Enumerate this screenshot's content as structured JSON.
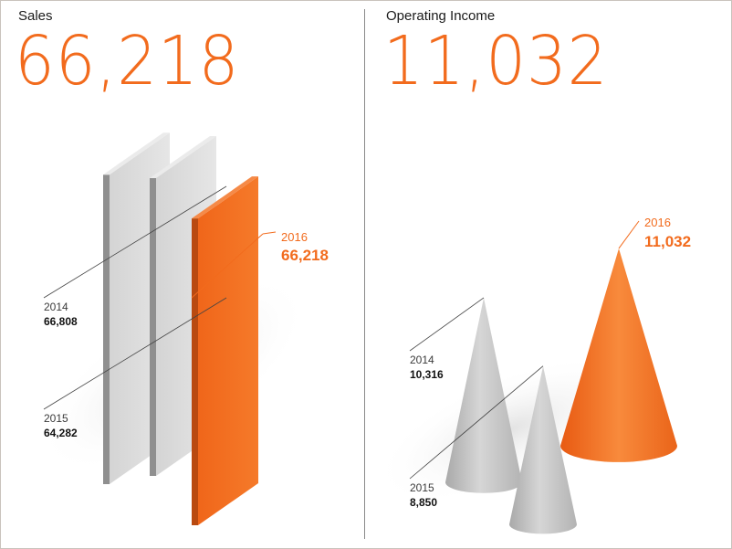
{
  "panels": {
    "sales": {
      "title": "Sales",
      "headline": "66,218"
    },
    "income": {
      "title": "Operating Income",
      "headline": "11,032"
    }
  },
  "colors": {
    "accent": "#f26b1d",
    "grey": "#c8c8c8",
    "text": "#1a1a1a"
  },
  "chart_data": [
    {
      "type": "bar",
      "title": "Sales",
      "categories": [
        "2014",
        "2015",
        "2016"
      ],
      "values": [
        66808,
        64282,
        66218
      ],
      "value_labels": [
        "66,808",
        "64,282",
        "66,218"
      ],
      "highlight": "2016"
    },
    {
      "type": "bar",
      "title": "Operating Income",
      "categories": [
        "2014",
        "2015",
        "2016"
      ],
      "values": [
        10316,
        8850,
        11032
      ],
      "value_labels": [
        "10,316",
        "8,850",
        "11,032"
      ],
      "highlight": "2016"
    }
  ]
}
